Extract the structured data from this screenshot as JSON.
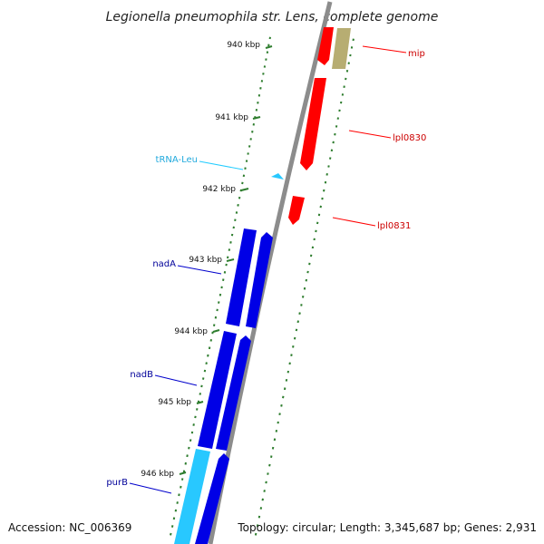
{
  "title": "Legionella pneumophila str. Lens, complete genome",
  "footer": {
    "accession": "Accession: NC_006369",
    "summary": "Topology: circular; Length: 3,345,687 bp; Genes: 2,931"
  },
  "colors": {
    "backbone": "#8c8c8c",
    "tick": "#2e7d2e",
    "red": "#ff0000",
    "tan": "#b7ad72",
    "blue": "#0000e6",
    "cyan": "#28c8ff",
    "label_red": "#cc0000",
    "label_blue": "#000099",
    "label_cyan": "#22aadd"
  },
  "scale": {
    "ticks": [
      {
        "kbp": 940,
        "label": "940 kbp"
      },
      {
        "kbp": 941,
        "label": "941 kbp"
      },
      {
        "kbp": 942,
        "label": "942 kbp"
      },
      {
        "kbp": 943,
        "label": "943 kbp"
      },
      {
        "kbp": 944,
        "label": "944 kbp"
      },
      {
        "kbp": 945,
        "label": "945 kbp"
      },
      {
        "kbp": 946,
        "label": "946 kbp"
      }
    ]
  },
  "genes": [
    {
      "name": "mip",
      "strand": "forward",
      "color": "red"
    },
    {
      "name": "lpl0830",
      "strand": "forward",
      "color": "red"
    },
    {
      "name": "lpl0831",
      "strand": "forward",
      "color": "red"
    },
    {
      "name": "tRNA-Leu",
      "strand": "feature",
      "color": "cyan"
    },
    {
      "name": "nadA",
      "strand": "reverse",
      "color": "blue"
    },
    {
      "name": "nadB",
      "strand": "reverse",
      "color": "blue"
    },
    {
      "name": "purB",
      "strand": "reverse",
      "color": "blue"
    }
  ]
}
